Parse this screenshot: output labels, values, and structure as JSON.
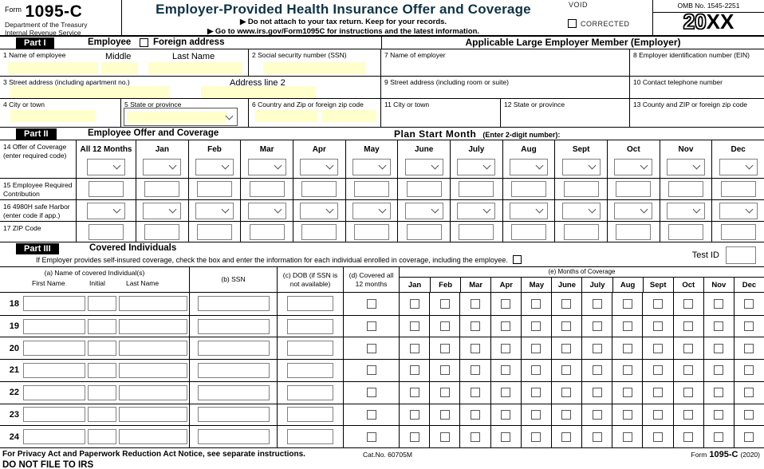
{
  "header": {
    "form_label": "Form",
    "form_number": "1095-C",
    "agency_line1": "Department of the Treasury",
    "agency_line2": "Internal Revenue Service",
    "title": "Employer-Provided Health Insurance Offer and Coverage",
    "instruction1": "▶ Do not attach to your tax return. Keep for your records.",
    "instruction2": "▶ Go to www.irs.gov/Form1095C for instructions and the latest information.",
    "void_label": "VOID",
    "corrected_label": "CORRECTED",
    "omb": "OMB No. 1545-2251",
    "year_prefix": "20",
    "year_suffix": "XX"
  },
  "part1": {
    "badge": "Part I",
    "title": "Employee",
    "foreign_address_label": "Foreign address",
    "employer_header": "Applicable Large Employer Member (Employer)",
    "fields": {
      "f1": "1  Name of employee",
      "middle": "Middle",
      "last": "Last Name",
      "f2": "2  Social security number (SSN)",
      "f3": "3  Street address (including apartment no.)",
      "address_line2": "Address line 2",
      "f4": "4  City or town",
      "f5": "5  State or province",
      "f6": "6 Country and Zip or foreign zip code",
      "f7": "7 Name of employer",
      "f8": "8 Employer identification number (EIN)",
      "f9": "9  Street address (including room or suite)",
      "f10": "10 Contact telephone number",
      "f11": "11 City or town",
      "f12": "12 State or province",
      "f13": "13 County and ZIP or foreign zip code"
    }
  },
  "part2": {
    "badge": "Part II",
    "title": "Employee Offer and Coverage",
    "plan_start_label": "Plan Start Month",
    "plan_start_hint": "(Enter 2-digit number):",
    "columns": [
      "All 12 Months",
      "Jan",
      "Feb",
      "Mar",
      "Apr",
      "May",
      "June",
      "July",
      "Aug",
      "Sept",
      "Oct",
      "Nov",
      "Dec"
    ],
    "rows": [
      {
        "label": "14 Offer of Coverage (enter required code)",
        "type": "select"
      },
      {
        "label": "15 Employee Required Contribution",
        "type": "input"
      },
      {
        "label": "16 4980H safe Harbor (enter code if app.)",
        "type": "select"
      },
      {
        "label": "17 ZIP Code",
        "type": "input"
      }
    ]
  },
  "part3": {
    "badge": "Part III",
    "title": "Covered Individuals",
    "instruction": "If Employer provides self-insured coverage, check the box and enter the information for each individual enrolled in coverage, including the employee.",
    "test_id_label": "Test ID",
    "col_a": "(a) Name of covered Individual(s)",
    "col_a_sub": [
      "First Name",
      "Initial",
      "Last Name"
    ],
    "col_b": "(b) SSN",
    "col_c": "(c) DOB (if SSN is not available)",
    "col_d": "(d) Covered all 12 months",
    "col_e": "(e) Months of Coverage",
    "months": [
      "Jan",
      "Feb",
      "Mar",
      "Apr",
      "May",
      "June",
      "July",
      "Aug",
      "Sept",
      "Oct",
      "Nov",
      "Dec"
    ],
    "row_numbers": [
      "18",
      "19",
      "20",
      "21",
      "22",
      "23",
      "24"
    ]
  },
  "footer": {
    "privacy": "For Privacy Act and Paperwork Reduction Act Notice, see separate instructions.",
    "cat_no": "Cat.No. 60705M",
    "form_label": "Form",
    "form_number": "1095-C",
    "form_year": "(2020)",
    "do_not_file": "DO NOT FILE TO IRS"
  },
  "colors": {
    "input_yellow": "#FFFFCC",
    "title_teal": "#0e3345"
  }
}
